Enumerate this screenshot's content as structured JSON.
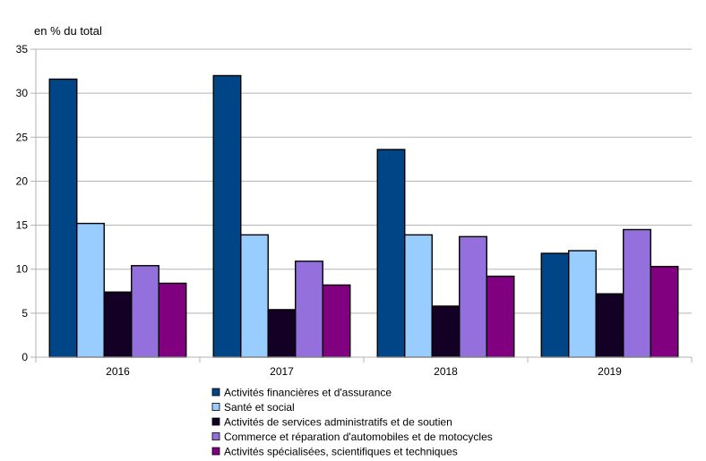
{
  "chart_data": {
    "type": "bar",
    "title": "",
    "xlabel": "",
    "ylabel": "en % du total",
    "categories": [
      "2016",
      "2017",
      "2018",
      "2019"
    ],
    "ylim": [
      0,
      35
    ],
    "yticks": [
      0,
      5,
      10,
      15,
      20,
      25,
      30,
      35
    ],
    "grid": true,
    "legend_position": "bottom",
    "series": [
      {
        "name": "Activités financières et d'assurance",
        "color": "#004586",
        "values": [
          31.6,
          32.0,
          23.6,
          11.8
        ]
      },
      {
        "name": "Santé et social",
        "color": "#99ccff",
        "values": [
          15.2,
          13.9,
          13.9,
          12.1
        ]
      },
      {
        "name": "Activités de services administratifs et de soutien",
        "color": "#150025",
        "values": [
          7.4,
          5.4,
          5.8,
          7.2
        ]
      },
      {
        "name": "Commerce et réparation d'automobiles et de motocycles",
        "color": "#9370db",
        "values": [
          10.4,
          10.9,
          13.7,
          14.5
        ]
      },
      {
        "name": "Activités spécialisées, scientifiques et techniques",
        "color": "#800080",
        "values": [
          8.4,
          8.2,
          9.2,
          10.3
        ]
      }
    ]
  }
}
